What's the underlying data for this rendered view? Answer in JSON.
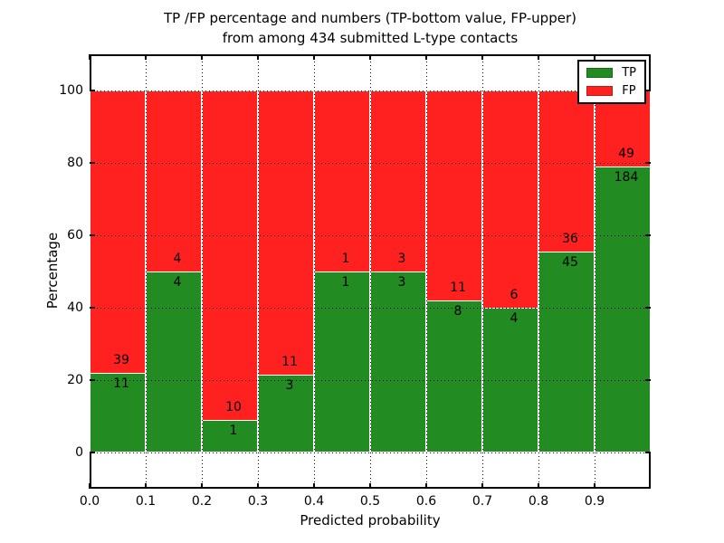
{
  "chart_data": {
    "type": "bar",
    "stacked": true,
    "normalized_to_percent": true,
    "title_line1": "TP /FP percentage and numbers (TP-bottom value, FP-upper)",
    "title_line2": "from among 434 submitted L-type contacts",
    "xlabel": "Predicted probability",
    "ylabel": "Percentage",
    "xlim": [
      0.0,
      1.0
    ],
    "ylim": [
      -10,
      110
    ],
    "bin_width": 0.1,
    "xtick_labels": [
      "0.0",
      "0.1",
      "0.2",
      "0.3",
      "0.4",
      "0.5",
      "0.6",
      "0.7",
      "0.8",
      "0.9"
    ],
    "ytick_values": [
      0,
      20,
      40,
      60,
      80,
      100
    ],
    "categories": [
      "0.0-0.1",
      "0.1-0.2",
      "0.2-0.3",
      "0.3-0.4",
      "0.4-0.5",
      "0.5-0.6",
      "0.6-0.7",
      "0.7-0.8",
      "0.8-0.9",
      "0.9-1.0"
    ],
    "series": [
      {
        "name": "TP",
        "color": "#228b22",
        "counts": [
          11,
          4,
          1,
          3,
          1,
          3,
          8,
          4,
          45,
          184
        ]
      },
      {
        "name": "FP",
        "color": "#ff2020",
        "counts": [
          39,
          4,
          10,
          11,
          1,
          3,
          11,
          6,
          36,
          49
        ]
      }
    ],
    "tp_percent_per_bin": [
      22.0,
      50.0,
      9.09,
      21.43,
      50.0,
      50.0,
      42.11,
      40.0,
      55.56,
      78.97
    ],
    "total_contacts": 434,
    "grid": true,
    "grid_style": "dotted",
    "legend": {
      "position": "upper right",
      "entries": [
        {
          "label": "TP",
          "color": "#228b22"
        },
        {
          "label": "FP",
          "color": "#ff2020"
        }
      ]
    }
  }
}
